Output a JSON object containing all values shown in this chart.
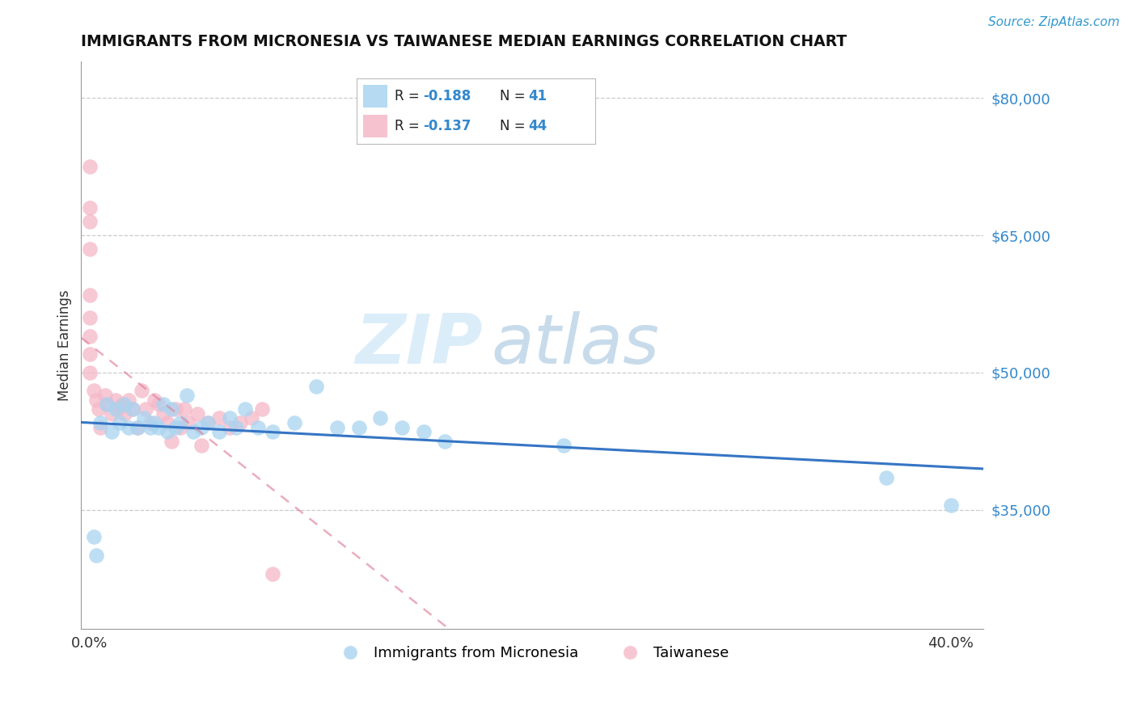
{
  "title": "IMMIGRANTS FROM MICRONESIA VS TAIWANESE MEDIAN EARNINGS CORRELATION CHART",
  "source": "Source: ZipAtlas.com",
  "ylabel": "Median Earnings",
  "ytick_labels": [
    "$35,000",
    "$50,000",
    "$65,000",
    "$80,000"
  ],
  "ytick_values": [
    35000,
    50000,
    65000,
    80000
  ],
  "ymin": 22000,
  "ymax": 84000,
  "xmin": -0.004,
  "xmax": 0.415,
  "xtick_positions": [
    0.0,
    0.4
  ],
  "xtick_labels": [
    "0.0%",
    "40.0%"
  ],
  "legend_blue_label": "Immigrants from Micronesia",
  "legend_pink_label": "Taiwanese",
  "legend_R_blue": "-0.188",
  "legend_N_blue": "41",
  "legend_R_pink": "-0.137",
  "legend_N_pink": "44",
  "blue_color": "#A8D4F0",
  "pink_color": "#F5B8C8",
  "trendline_blue_color": "#3575C4",
  "trendline_pink_color": "#E08098",
  "background_color": "#ffffff",
  "grid_color": "#cccccc",
  "watermark_zip": "ZIP",
  "watermark_atlas": "atlas",
  "blue_scatter_x": [
    0.002,
    0.003,
    0.005,
    0.008,
    0.01,
    0.012,
    0.014,
    0.016,
    0.018,
    0.02,
    0.022,
    0.025,
    0.028,
    0.03,
    0.032,
    0.034,
    0.036,
    0.038,
    0.04,
    0.042,
    0.045,
    0.048,
    0.052,
    0.055,
    0.06,
    0.065,
    0.068,
    0.072,
    0.078,
    0.085,
    0.095,
    0.105,
    0.115,
    0.125,
    0.135,
    0.145,
    0.155,
    0.165,
    0.22,
    0.37,
    0.4
  ],
  "blue_scatter_y": [
    32000,
    30000,
    44500,
    46500,
    43500,
    46000,
    44500,
    46500,
    44000,
    46000,
    44000,
    45000,
    44000,
    44500,
    44000,
    46500,
    43500,
    46000,
    44000,
    44500,
    47500,
    43500,
    44000,
    44500,
    43500,
    45000,
    44000,
    46000,
    44000,
    43500,
    44500,
    48500,
    44000,
    44000,
    45000,
    44000,
    43500,
    42500,
    42000,
    38500,
    35500
  ],
  "pink_scatter_x": [
    0.0,
    0.0,
    0.0,
    0.0,
    0.0,
    0.0,
    0.0,
    0.0,
    0.0,
    0.002,
    0.003,
    0.004,
    0.005,
    0.007,
    0.008,
    0.01,
    0.012,
    0.013,
    0.015,
    0.016,
    0.018,
    0.02,
    0.022,
    0.024,
    0.026,
    0.028,
    0.03,
    0.032,
    0.034,
    0.036,
    0.038,
    0.04,
    0.042,
    0.044,
    0.046,
    0.05,
    0.052,
    0.055,
    0.06,
    0.065,
    0.07,
    0.075,
    0.08,
    0.085
  ],
  "pink_scatter_y": [
    72500,
    68000,
    66500,
    63500,
    58500,
    56000,
    54000,
    52000,
    50000,
    48000,
    47000,
    46000,
    44000,
    47500,
    46500,
    45500,
    47000,
    46000,
    46500,
    45500,
    47000,
    46000,
    44000,
    48000,
    46000,
    44500,
    47000,
    46500,
    45500,
    44500,
    42500,
    46000,
    44000,
    46000,
    44500,
    45500,
    42000,
    44500,
    45000,
    44000,
    44500,
    45000,
    46000,
    28000
  ]
}
